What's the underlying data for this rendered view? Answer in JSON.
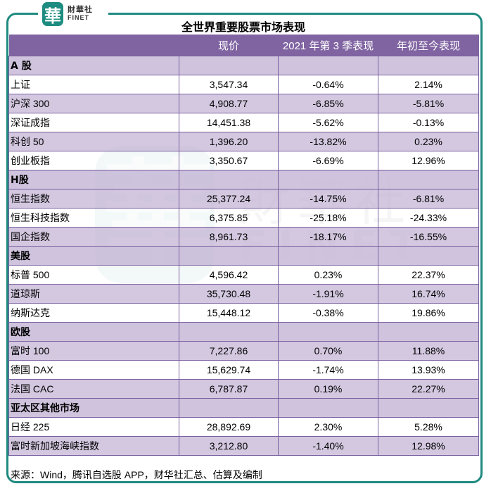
{
  "logo": {
    "mark": "華",
    "cn": "財華社",
    "en": "FINET"
  },
  "title": "全世界重要股票市场表现",
  "watermark": {
    "mark": "華",
    "cn": "財華社",
    "en": "FINET"
  },
  "table": {
    "headers": [
      "",
      "现价",
      "2021 年第 3 季表现",
      "年初至今表现"
    ],
    "rows": [
      {
        "type": "section",
        "name": "A 股"
      },
      {
        "type": "data",
        "name": "上证",
        "price": "3,547.34",
        "q3": "-0.64%",
        "ytd": "2.14%"
      },
      {
        "type": "data",
        "name": "沪深 300",
        "price": "4,908.77",
        "q3": "-6.85%",
        "ytd": "-5.81%"
      },
      {
        "type": "data",
        "name": "深证成指",
        "price": "14,451.38",
        "q3": "-5.62%",
        "ytd": "-0.13%"
      },
      {
        "type": "data",
        "name": "科创 50",
        "price": "1,396.20",
        "q3": "-13.82%",
        "ytd": "0.23%"
      },
      {
        "type": "data",
        "name": "创业板指",
        "price": "3,350.67",
        "q3": "-6.69%",
        "ytd": "12.96%"
      },
      {
        "type": "section",
        "name": "H股"
      },
      {
        "type": "data",
        "name": "恒生指数",
        "price": "25,377.24",
        "q3": "-14.75%",
        "ytd": "-6.81%"
      },
      {
        "type": "data",
        "name": "恒生科技指数",
        "price": "6,375.85",
        "q3": "-25.18%",
        "ytd": "-24.33%"
      },
      {
        "type": "data",
        "name": "国企指数",
        "price": "8,961.73",
        "q3": "-18.17%",
        "ytd": "-16.55%"
      },
      {
        "type": "section",
        "name": "美股"
      },
      {
        "type": "data",
        "name": "标普 500",
        "price": "4,596.42",
        "q3": "0.23%",
        "ytd": "22.37%"
      },
      {
        "type": "data",
        "name": "道琼斯",
        "price": "35,730.48",
        "q3": "-1.91%",
        "ytd": "16.74%"
      },
      {
        "type": "data",
        "name": "纳斯达克",
        "price": "15,448.12",
        "q3": "-0.38%",
        "ytd": "19.86%"
      },
      {
        "type": "section",
        "name": "欧股"
      },
      {
        "type": "data",
        "name": "富时 100",
        "price": "7,227.86",
        "q3": "0.70%",
        "ytd": "11.88%"
      },
      {
        "type": "data",
        "name": "德国 DAX",
        "price": "15,629.74",
        "q3": "-1.74%",
        "ytd": "13.93%"
      },
      {
        "type": "data",
        "name": "法国 CAC",
        "price": "6,787.87",
        "q3": "0.19%",
        "ytd": "22.27%"
      },
      {
        "type": "section",
        "name": "亚太区其他市场"
      },
      {
        "type": "data",
        "name": "日经 225",
        "price": "28,892.69",
        "q3": "2.30%",
        "ytd": "5.28%"
      },
      {
        "type": "data",
        "name": "富时新加坡海峡指数",
        "price": "3,212.80",
        "q3": "-1.40%",
        "ytd": "12.98%"
      }
    ]
  },
  "source": "来源：Wind，腾讯自选股 APP，财华社汇总、估算及编制",
  "colors": {
    "header": "#8064a2",
    "band": "#cbbeda",
    "border": "#7a5fa0",
    "frame": "#1f8a80"
  }
}
